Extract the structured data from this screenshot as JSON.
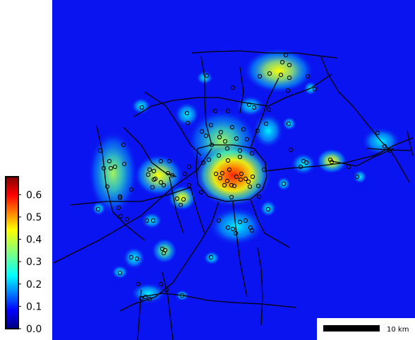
{
  "map": {
    "colors": {
      "background": "#0a14f0",
      "roads": "#000000",
      "points": "#000000"
    },
    "colorbar": {
      "min": 0.0,
      "max": 0.68,
      "ticks": [
        "0.0",
        "0.1",
        "0.2",
        "0.3",
        "0.4",
        "0.5",
        "0.6"
      ],
      "tick_values": [
        0.0,
        0.1,
        0.2,
        0.3,
        0.4,
        0.5,
        0.6
      ],
      "colormap": "jet"
    },
    "scalebar": {
      "label": "10 km"
    }
  }
}
